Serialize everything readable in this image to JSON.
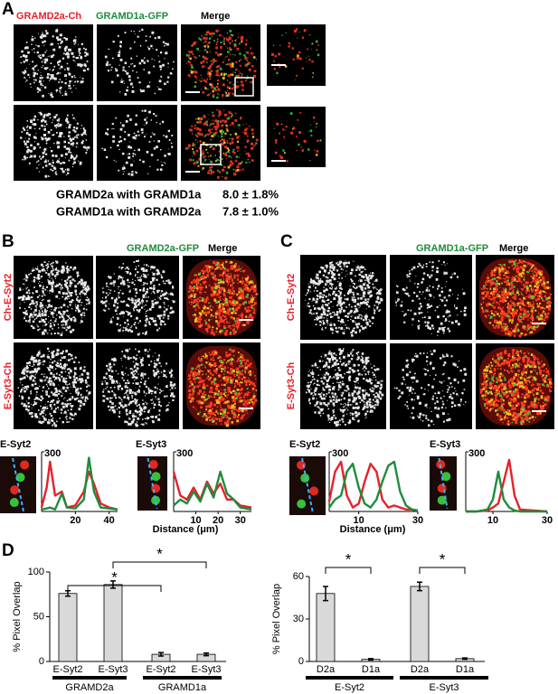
{
  "panel_a": {
    "label": "A",
    "channels": [
      "GRAMD2a-Ch",
      "GRAMD1a-GFP",
      "Merge"
    ],
    "stats": [
      [
        "GRAMD2a with GRAMD1a",
        "8.0 ± 1.8%"
      ],
      [
        "GRAMD1a with GRAMD2a",
        "7.8 ± 1.0%"
      ]
    ]
  },
  "panel_b": {
    "label": "B",
    "channels": [
      "GRAMD2a-GFP",
      "Merge"
    ],
    "rows": [
      "Ch-E-Syt2",
      "E-Syt3-Ch"
    ],
    "xlabel": "Distance (μm)"
  },
  "panel_c": {
    "label": "C",
    "channels": [
      "GRAMD1a-GFP",
      "Merge"
    ],
    "rows": [
      "Ch-E-Syt2",
      "E-Syt3-Ch"
    ],
    "xlabel": "Distance (μm)"
  },
  "panel_d": {
    "label": "D"
  },
  "chart_data": [
    {
      "type": "line",
      "title": "E-Syt2",
      "x": [
        0,
        3,
        5,
        8,
        12,
        15,
        20,
        25,
        28,
        31,
        35,
        40,
        45
      ],
      "series": [
        {
          "color": "#e8202a",
          "values": [
            20,
            120,
            250,
            80,
            100,
            20,
            30,
            100,
            200,
            140,
            40,
            20,
            10
          ]
        },
        {
          "color": "#1e8c3c",
          "values": [
            10,
            15,
            20,
            10,
            90,
            20,
            15,
            60,
            270,
            100,
            20,
            15,
            10
          ]
        }
      ],
      "xlim": [
        0,
        45
      ],
      "ylim": [
        0,
        300
      ],
      "xticks": [
        20,
        40
      ],
      "yticks": [
        300
      ]
    },
    {
      "type": "line",
      "title": "E-Syt3",
      "x": [
        0,
        3,
        6,
        9,
        12,
        15,
        18,
        21,
        24,
        27,
        30,
        35
      ],
      "series": [
        {
          "color": "#e8202a",
          "values": [
            200,
            80,
            60,
            120,
            60,
            150,
            90,
            140,
            60,
            60,
            30,
            20
          ]
        },
        {
          "color": "#1e8c3c",
          "values": [
            30,
            60,
            40,
            100,
            50,
            140,
            70,
            200,
            90,
            60,
            20,
            10
          ]
        }
      ],
      "xlim": [
        0,
        35
      ],
      "ylim": [
        0,
        300
      ],
      "xticks": [
        10,
        20,
        30
      ],
      "yticks": [
        300
      ]
    },
    {
      "type": "line",
      "title": "E-Syt2",
      "x": [
        0,
        2,
        4,
        6,
        8,
        10,
        12,
        14,
        16,
        18,
        20,
        22,
        24,
        26,
        28,
        30
      ],
      "series": [
        {
          "color": "#e8202a",
          "values": [
            50,
            200,
            250,
            80,
            20,
            40,
            150,
            240,
            200,
            60,
            20,
            30,
            20,
            10,
            10,
            5
          ]
        },
        {
          "color": "#1e8c3c",
          "values": [
            20,
            60,
            80,
            200,
            240,
            120,
            40,
            20,
            60,
            150,
            230,
            250,
            100,
            30,
            10,
            5
          ]
        }
      ],
      "xlim": [
        0,
        30
      ],
      "ylim": [
        0,
        300
      ],
      "xticks": [
        10,
        30
      ],
      "yticks": [
        300
      ]
    },
    {
      "type": "line",
      "title": "E-Syt3",
      "x": [
        0,
        4,
        8,
        10,
        12,
        14,
        16,
        18,
        20,
        25,
        30
      ],
      "series": [
        {
          "color": "#e8202a",
          "values": [
            0,
            0,
            5,
            20,
            40,
            150,
            260,
            80,
            10,
            5,
            0
          ]
        },
        {
          "color": "#1e8c3c",
          "values": [
            0,
            0,
            10,
            60,
            200,
            60,
            20,
            5,
            0,
            0,
            0
          ]
        }
      ],
      "xlim": [
        0,
        30
      ],
      "ylim": [
        0,
        300
      ],
      "xticks": [
        10,
        30
      ],
      "yticks": [
        300
      ]
    },
    {
      "type": "bar",
      "ylabel": "% Pixel Overlap",
      "categories": [
        "E-Syt2",
        "E-Syt3",
        "E-Syt2",
        "E-Syt3"
      ],
      "groups": [
        "GRAMD2a",
        "GRAMD1a"
      ],
      "values": [
        76,
        86,
        8,
        8
      ],
      "errors": [
        3,
        4,
        2,
        1.5
      ],
      "color": "#d9d9d9",
      "ylim": [
        0,
        100
      ],
      "yticks": [
        0,
        50,
        100
      ],
      "significance": [
        "*",
        "*"
      ]
    },
    {
      "type": "bar",
      "ylabel": "% Pixel Overlap",
      "categories": [
        "D2a",
        "D1a",
        "D2a",
        "D1a"
      ],
      "groups": [
        "E-Syt2",
        "E-Syt3"
      ],
      "values": [
        48,
        1.5,
        53,
        2
      ],
      "errors": [
        5,
        0.5,
        3,
        0.5
      ],
      "color": "#d9d9d9",
      "ylim": [
        0,
        60
      ],
      "yticks": [
        0,
        30,
        60
      ],
      "significance": [
        "*",
        "*"
      ]
    }
  ]
}
